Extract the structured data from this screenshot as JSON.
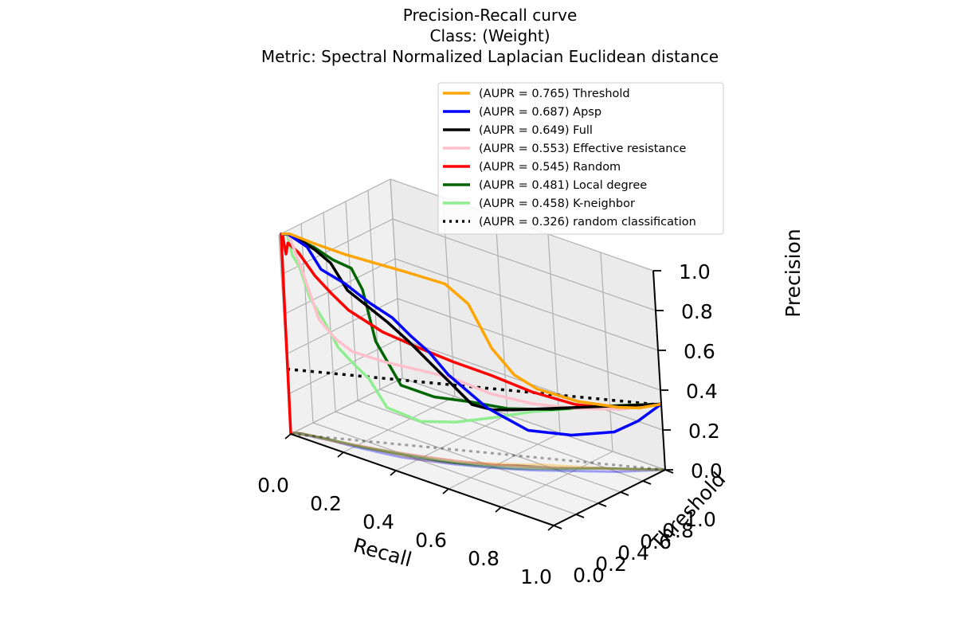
{
  "chart_data": {
    "type": "line",
    "projection": "3d",
    "title": [
      "Precision-Recall curve",
      "Class: (Weight)",
      "Metric: Spectral Normalized Laplacian Euclidean distance"
    ],
    "xlabel": "Recall",
    "ylabel": "Threshold",
    "zlabel": "Precision",
    "xlim": [
      0,
      1
    ],
    "ylim": [
      0,
      1
    ],
    "zlim": [
      0,
      1
    ],
    "xticks": [
      "0.0",
      "0.2",
      "0.4",
      "0.6",
      "0.8",
      "1.0"
    ],
    "yticks": [
      "0.0",
      "0.2",
      "0.4",
      "0.6",
      "0.8",
      "1.0"
    ],
    "zticks": [
      "0.0",
      "0.2",
      "0.4",
      "0.6",
      "0.8",
      "1.0"
    ],
    "grid": true,
    "legend_position": "top-right",
    "projected_shadow_on_floor": true,
    "series": [
      {
        "name": "(AUPR = 0.765) Threshold",
        "color": "#ffa500",
        "style": "solid",
        "recall": [
          0,
          0.02,
          0.1,
          0.2,
          0.3,
          0.4,
          0.5,
          0.55,
          0.6,
          0.65,
          0.7,
          0.8,
          0.9,
          0.95,
          1.0
        ],
        "threshold": [
          0.02,
          0.05,
          0.08,
          0.12,
          0.16,
          0.2,
          0.3,
          0.38,
          0.45,
          0.52,
          0.6,
          0.72,
          0.85,
          0.92,
          1.0
        ],
        "precision": [
          1.0,
          1.0,
          0.98,
          0.96,
          0.95,
          0.94,
          0.9,
          0.8,
          0.58,
          0.45,
          0.38,
          0.33,
          0.31,
          0.31,
          0.33
        ]
      },
      {
        "name": "(AUPR = 0.687) Apsp",
        "color": "#0000ff",
        "style": "solid",
        "recall": [
          0,
          0.02,
          0.08,
          0.12,
          0.2,
          0.28,
          0.35,
          0.4,
          0.45,
          0.5,
          0.6,
          0.7,
          0.8,
          0.9,
          0.95,
          1.0
        ],
        "threshold": [
          0.02,
          0.04,
          0.06,
          0.08,
          0.1,
          0.13,
          0.16,
          0.2,
          0.24,
          0.28,
          0.38,
          0.5,
          0.65,
          0.8,
          0.9,
          1.0
        ],
        "precision": [
          1.0,
          1.0,
          0.96,
          0.86,
          0.82,
          0.75,
          0.7,
          0.62,
          0.55,
          0.45,
          0.3,
          0.2,
          0.18,
          0.2,
          0.25,
          0.33
        ]
      },
      {
        "name": "(AUPR = 0.649) Full",
        "color": "#000000",
        "style": "solid",
        "recall": [
          0,
          0.02,
          0.06,
          0.1,
          0.15,
          0.2,
          0.26,
          0.32,
          0.38,
          0.45,
          0.5,
          0.55,
          0.6,
          0.65,
          0.75,
          0.85,
          1.0
        ],
        "threshold": [
          0.02,
          0.04,
          0.06,
          0.08,
          0.1,
          0.12,
          0.15,
          0.18,
          0.22,
          0.26,
          0.3,
          0.36,
          0.42,
          0.5,
          0.62,
          0.78,
          1.0
        ],
        "precision": [
          1.0,
          1.0,
          0.98,
          0.95,
          0.9,
          0.78,
          0.72,
          0.66,
          0.58,
          0.48,
          0.4,
          0.3,
          0.28,
          0.28,
          0.3,
          0.31,
          0.33
        ]
      },
      {
        "name": "(AUPR = 0.553) Effective resistance",
        "color": "#ffc0cb",
        "style": "solid",
        "recall": [
          0,
          0.02,
          0.05,
          0.1,
          0.15,
          0.2,
          0.3,
          0.4,
          0.5,
          0.6,
          0.7,
          0.8,
          0.9,
          1.0
        ],
        "threshold": [
          0.02,
          0.04,
          0.06,
          0.08,
          0.1,
          0.13,
          0.18,
          0.24,
          0.32,
          0.42,
          0.55,
          0.7,
          0.85,
          1.0
        ],
        "precision": [
          1.0,
          1.0,
          0.85,
          0.6,
          0.52,
          0.47,
          0.45,
          0.44,
          0.42,
          0.36,
          0.32,
          0.3,
          0.3,
          0.33
        ]
      },
      {
        "name": "(AUPR = 0.545) Random",
        "color": "#ff0000",
        "style": "solid",
        "recall": [
          0,
          0.0,
          0.005,
          0.01,
          0.02,
          0.05,
          0.1,
          0.15,
          0.2,
          0.3,
          0.4,
          0.5,
          0.6,
          0.7,
          0.8,
          0.9,
          1.0
        ],
        "threshold": [
          0.0,
          0.02,
          0.02,
          0.03,
          0.03,
          0.05,
          0.07,
          0.09,
          0.12,
          0.18,
          0.25,
          0.33,
          0.43,
          0.55,
          0.7,
          0.85,
          1.0
        ],
        "precision": [
          0.0,
          1.0,
          1.0,
          0.9,
          0.96,
          0.92,
          0.82,
          0.75,
          0.68,
          0.6,
          0.55,
          0.5,
          0.45,
          0.38,
          0.32,
          0.3,
          0.33
        ]
      },
      {
        "name": "(AUPR = 0.481) Local degree",
        "color": "#006400",
        "style": "solid",
        "recall": [
          0,
          0.02,
          0.06,
          0.1,
          0.16,
          0.22,
          0.25,
          0.28,
          0.35,
          0.45,
          0.55,
          0.65,
          0.75,
          0.85,
          1.0
        ],
        "threshold": [
          0.02,
          0.04,
          0.06,
          0.08,
          0.1,
          0.12,
          0.14,
          0.16,
          0.2,
          0.26,
          0.34,
          0.45,
          0.6,
          0.78,
          1.0
        ],
        "precision": [
          1.0,
          1.0,
          0.98,
          0.96,
          0.92,
          0.9,
          0.8,
          0.55,
          0.35,
          0.32,
          0.32,
          0.3,
          0.3,
          0.31,
          0.33
        ]
      },
      {
        "name": "(AUPR = 0.458) K-neighbor",
        "color": "#90ee90",
        "style": "solid",
        "recall": [
          0,
          0.02,
          0.03,
          0.05,
          0.08,
          0.12,
          0.16,
          0.2,
          0.25,
          0.3,
          0.4,
          0.5,
          0.6,
          0.7,
          0.8,
          0.9,
          1.0
        ],
        "threshold": [
          0.02,
          0.03,
          0.04,
          0.05,
          0.06,
          0.08,
          0.1,
          0.12,
          0.15,
          0.18,
          0.24,
          0.32,
          0.42,
          0.55,
          0.7,
          0.85,
          1.0
        ],
        "precision": [
          1.0,
          1.0,
          0.9,
          0.85,
          0.7,
          0.6,
          0.48,
          0.42,
          0.35,
          0.22,
          0.18,
          0.2,
          0.24,
          0.28,
          0.3,
          0.32,
          0.33
        ]
      },
      {
        "name": "(AUPR = 0.326) random classification",
        "color": "#000000",
        "style": "dotted",
        "recall": [
          0,
          1
        ],
        "threshold": [
          0,
          1
        ],
        "precision": [
          0.326,
          0.326
        ]
      }
    ]
  }
}
